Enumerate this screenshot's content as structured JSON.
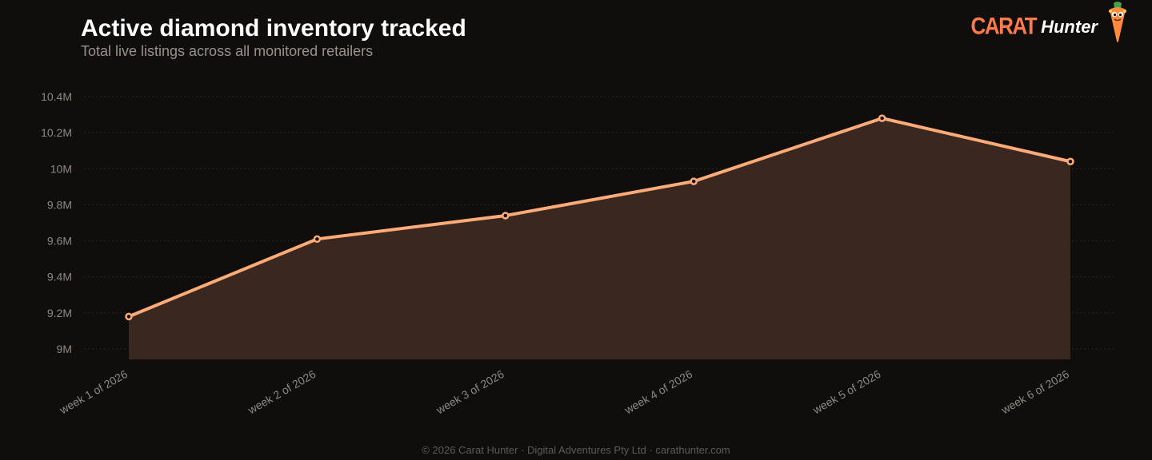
{
  "header": {
    "title": "Active diamond inventory tracked",
    "subtitle": "Total live listings across all monitored retailers"
  },
  "brand": {
    "name_part1": "CARAT",
    "name_part2": "Hunter",
    "logo_icon": "carrot-mascot-icon",
    "accent_color": "#ff7a4a"
  },
  "footer": {
    "text": "© 2026 Carat Hunter · Digital Adventures Pty Ltd · carathunter.com"
  },
  "colors": {
    "line": "#ffab78",
    "area": "#3a2820",
    "grid": "#2a2724",
    "background": "#0f0e0d"
  },
  "chart_data": {
    "type": "area",
    "title": "Active diamond inventory tracked",
    "subtitle": "Total live listings across all monitored retailers",
    "xlabel": "",
    "ylabel": "",
    "categories": [
      "week 1 of 2026",
      "week 2 of 2026",
      "week 3 of 2026",
      "week 4 of 2026",
      "week 5 of 2026",
      "week 6 of 2026"
    ],
    "values": [
      9180000,
      9610000,
      9740000,
      9930000,
      10280000,
      10040000
    ],
    "ylim": [
      8950000,
      10400000
    ],
    "yticks": [
      9000000,
      9200000,
      9400000,
      9600000,
      9800000,
      10000000,
      10200000,
      10400000
    ],
    "ytick_labels": [
      "9M",
      "9.2M",
      "9.4M",
      "9.6M",
      "9.8M",
      "10M",
      "10.2M",
      "10.4M"
    ],
    "grid": true,
    "legend": "none"
  }
}
